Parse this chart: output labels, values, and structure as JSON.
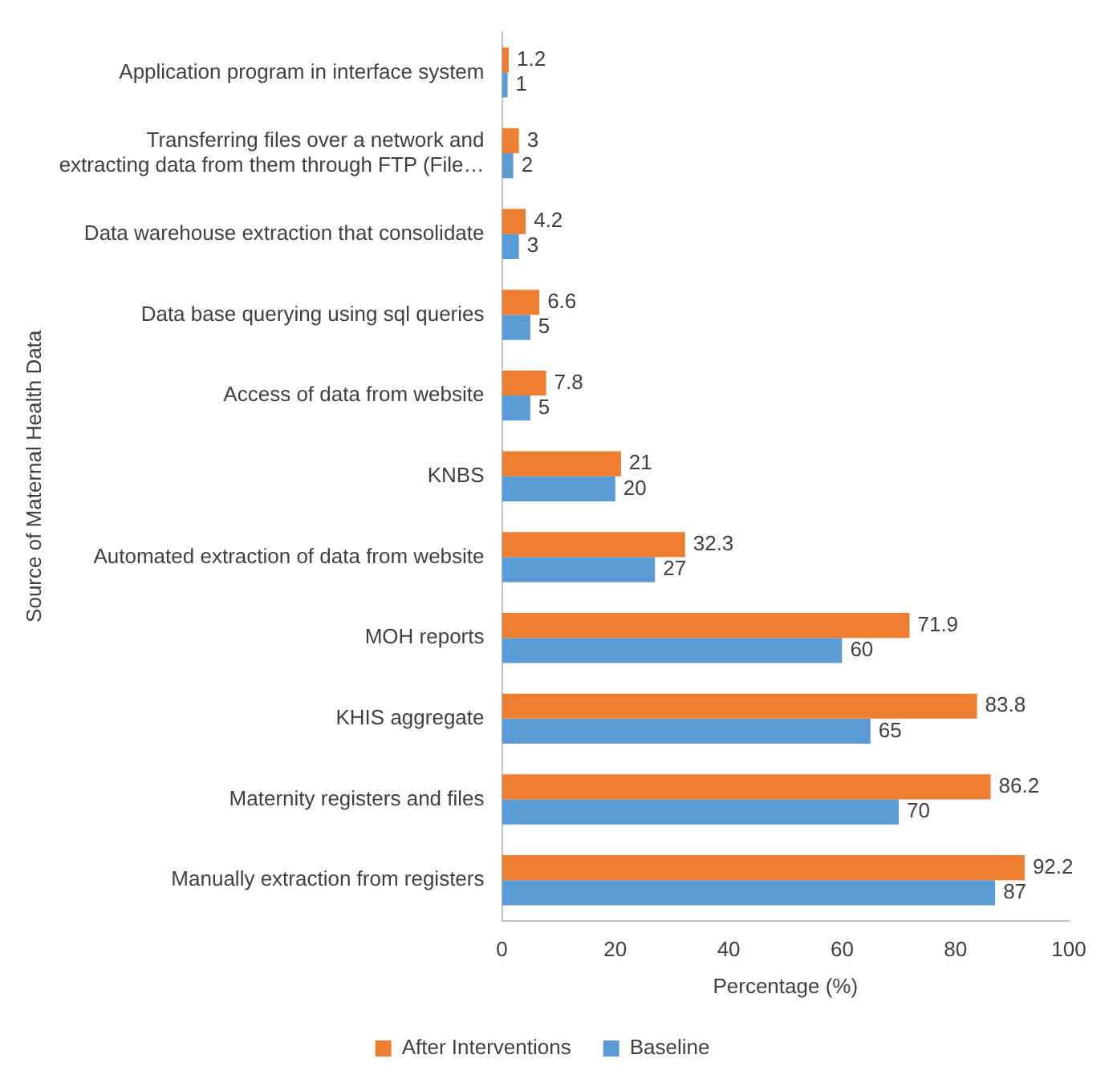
{
  "chart_data": {
    "type": "bar",
    "orientation": "horizontal",
    "xlabel": "Percentage (%)",
    "ylabel": "Source of Maternal Health Data",
    "categories": [
      "Application program in interface system",
      "Transferring files over a network and extracting data from them through FTP (File…",
      "Data warehouse extraction that consolidate",
      "Data base querying using sql queries",
      "Access of data from website",
      "KNBS",
      "Automated extraction of data from website",
      "MOH reports",
      "KHIS aggregate",
      "Maternity registers and files",
      "Manually extraction from registers"
    ],
    "series": [
      {
        "name": "After Interventions",
        "color": "#ed7d31",
        "values": [
          1.2,
          3,
          4.2,
          6.6,
          7.8,
          21,
          32.3,
          71.9,
          83.8,
          86.2,
          92.2
        ]
      },
      {
        "name": "Baseline",
        "color": "#5b9bd5",
        "values": [
          1,
          2,
          3,
          5,
          5,
          20,
          27,
          60,
          65,
          70,
          87
        ]
      }
    ],
    "xlim": [
      0,
      100
    ],
    "xticks": [
      0,
      20,
      40,
      60,
      80,
      100
    ],
    "grid": false,
    "legend": "bottom",
    "data_labels": true
  }
}
